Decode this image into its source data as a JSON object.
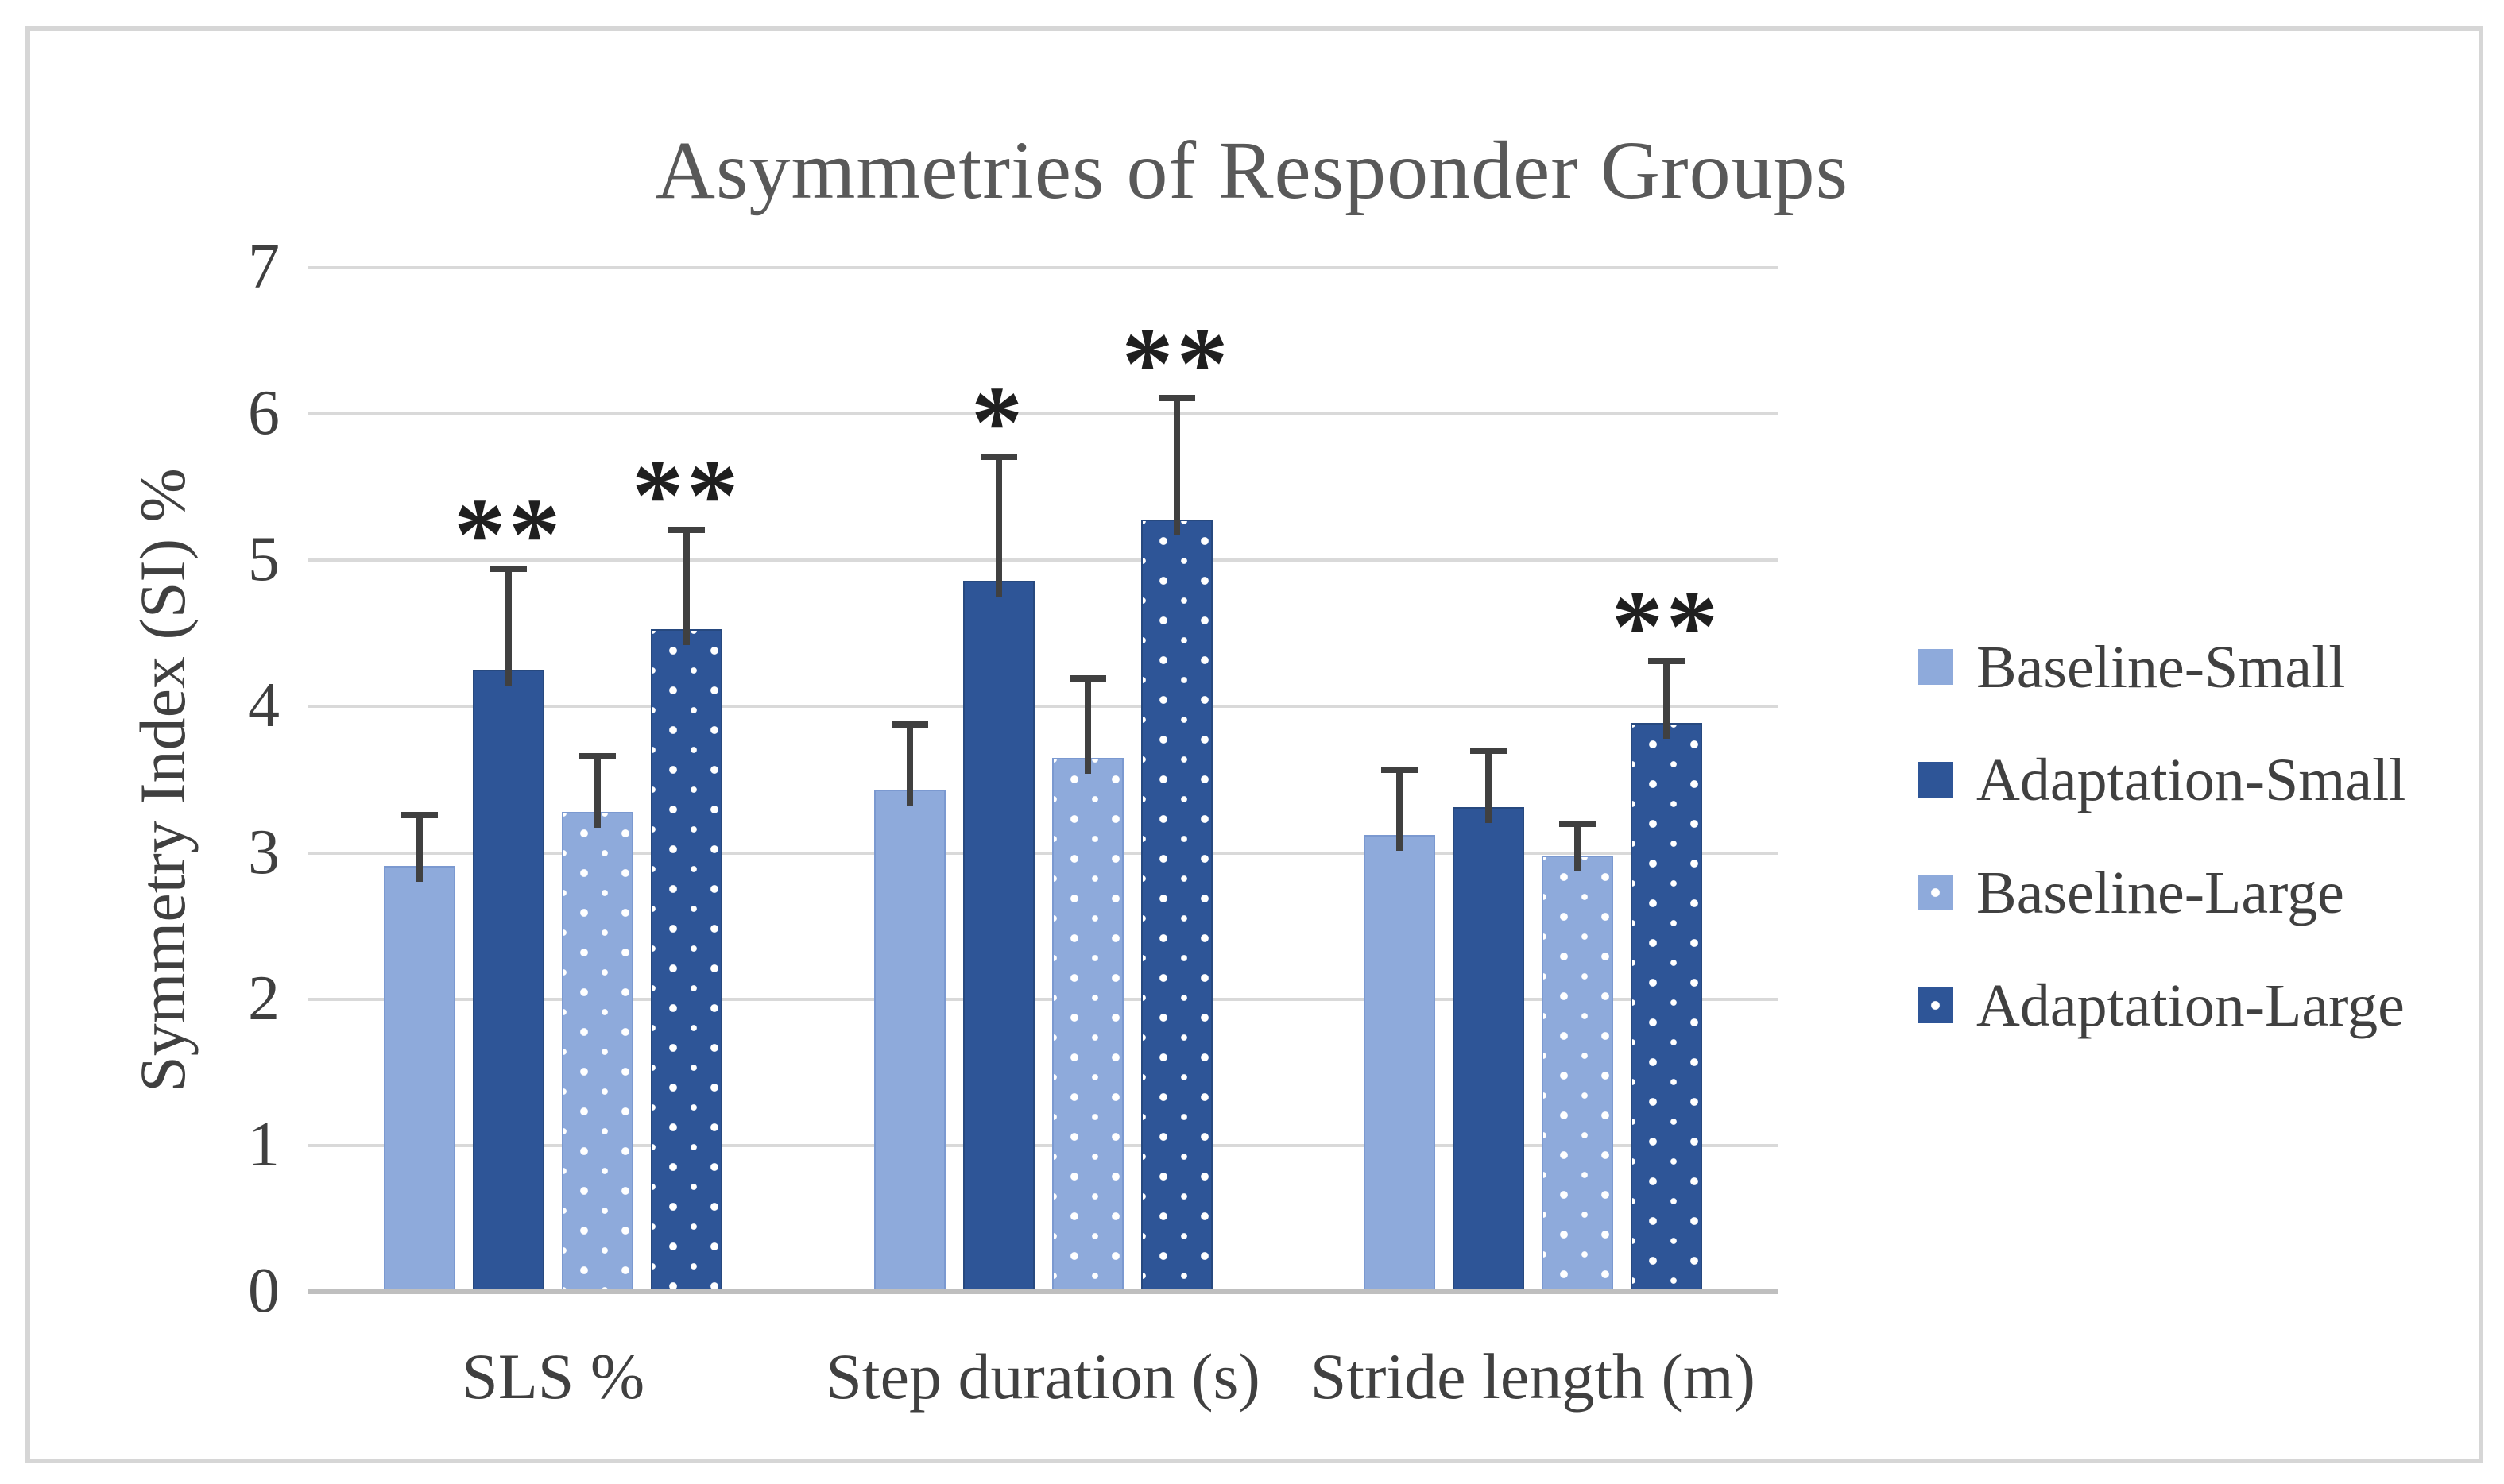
{
  "frame": {
    "border_color": "#D6D6D6"
  },
  "chart_data": {
    "type": "bar",
    "title": "Asymmetries of Responder Groups",
    "xlabel": "",
    "ylabel": "Symmetry Index (SI) %",
    "ylim": [
      0,
      7
    ],
    "yticks": [
      0,
      1,
      2,
      3,
      4,
      5,
      6,
      7
    ],
    "grid": true,
    "legend_position": "right",
    "categories": [
      "SLS %",
      "Step duration (s)",
      "Stride length (m)"
    ],
    "series": [
      {
        "name": "Baseline-Small",
        "fill": "solid",
        "color": "#8EAADB",
        "values": [
          2.91,
          3.43,
          3.12
        ],
        "errors": [
          0.35,
          0.45,
          0.45
        ]
      },
      {
        "name": "Adaptation-Small",
        "fill": "solid",
        "color": "#2E5597",
        "values": [
          4.25,
          4.86,
          3.31
        ],
        "errors": [
          0.69,
          0.85,
          0.39
        ]
      },
      {
        "name": "Baseline-Large",
        "fill": "dotted",
        "color": "#8EAADB",
        "values": [
          3.28,
          3.65,
          2.98
        ],
        "errors": [
          0.38,
          0.54,
          0.22
        ]
      },
      {
        "name": "Adaptation-Large",
        "fill": "dotted",
        "color": "#2E5597",
        "values": [
          4.53,
          5.28,
          3.89
        ],
        "errors": [
          0.68,
          0.83,
          0.42
        ]
      }
    ],
    "significance": [
      {
        "category": 0,
        "series": 1,
        "label": "**"
      },
      {
        "category": 0,
        "series": 3,
        "label": "**"
      },
      {
        "category": 1,
        "series": 1,
        "label": "*"
      },
      {
        "category": 1,
        "series": 3,
        "label": "**"
      },
      {
        "category": 2,
        "series": 3,
        "label": "**"
      }
    ],
    "colors": {
      "gridline": "#D9D9D9",
      "axis_line": "#BFBFBF",
      "error_bar": "#404040",
      "title_text": "#595959",
      "label_text": "#404040",
      "pattern_dot": "#FFFFFF"
    }
  }
}
